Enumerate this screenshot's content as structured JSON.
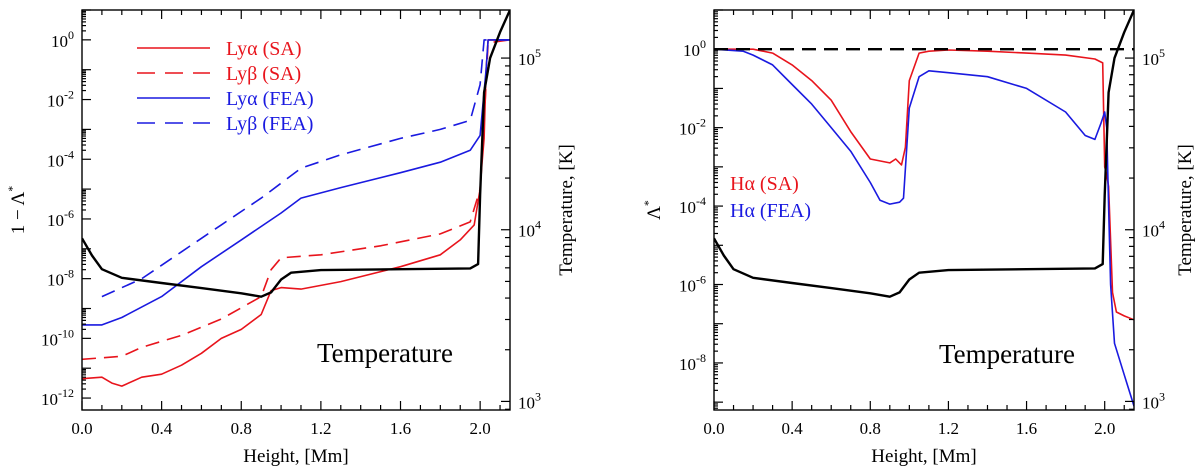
{
  "chart_data": [
    {
      "type": "line",
      "xlabel": "Height, [Mm]",
      "ylabel": "1 − Λ*",
      "ylabel_right": "Temperature, [K]",
      "annotation": "Temperature",
      "xlim": [
        0,
        2.15
      ],
      "ylim_log10": [
        -12.4,
        1
      ],
      "y2lim_log10": [
        2.95,
        5.28
      ],
      "y2_scale": "log",
      "y_scale": "log",
      "xticks": [
        "0.0",
        "0.4",
        "0.8",
        "1.2",
        "1.6",
        "2.0"
      ],
      "xtick_values": [
        0,
        0.4,
        0.8,
        1.2,
        1.6,
        2.0
      ],
      "yticks": [
        {
          "exp": -12,
          "base": "10",
          "power": "-12"
        },
        {
          "exp": -10,
          "base": "10",
          "power": "-10"
        },
        {
          "exp": -8,
          "base": "10",
          "power": "-8"
        },
        {
          "exp": -6,
          "base": "10",
          "power": "-6"
        },
        {
          "exp": -4,
          "base": "10",
          "power": "-4"
        },
        {
          "exp": -2,
          "base": "10",
          "power": "-2"
        },
        {
          "exp": 0,
          "base": "10",
          "power": "0"
        }
      ],
      "y2ticks": [
        {
          "exp": 3,
          "base": "10",
          "power": "3"
        },
        {
          "exp": 4,
          "base": "10",
          "power": "4"
        },
        {
          "exp": 5,
          "base": "10",
          "power": "5"
        }
      ],
      "legend_position": "top-left",
      "legend": [
        {
          "main": "Lyα",
          "tag": " (SA)",
          "color": "#e8141c",
          "dash": "solid"
        },
        {
          "main": "Lyβ",
          "tag": " (SA)",
          "color": "#e8141c",
          "dash": "dashed"
        },
        {
          "main": "Lyα",
          "tag": " (FEA)",
          "color": "#1a1ae0",
          "dash": "solid"
        },
        {
          "main": "Lyβ",
          "tag": " (FEA)",
          "color": "#1a1ae0",
          "dash": "dashed"
        }
      ],
      "series": [
        {
          "name": "Lyα (SA)",
          "color": "#e8141c",
          "dash": "solid",
          "axis": "left",
          "points": [
            [
              0.0,
              -11.35
            ],
            [
              0.1,
              -11.3
            ],
            [
              0.15,
              -11.5
            ],
            [
              0.2,
              -11.6
            ],
            [
              0.3,
              -11.3
            ],
            [
              0.4,
              -11.2
            ],
            [
              0.5,
              -10.9
            ],
            [
              0.6,
              -10.5
            ],
            [
              0.7,
              -10.0
            ],
            [
              0.8,
              -9.7
            ],
            [
              0.9,
              -9.2
            ],
            [
              0.95,
              -8.4
            ],
            [
              1.0,
              -8.3
            ],
            [
              1.1,
              -8.35
            ],
            [
              1.3,
              -8.1
            ],
            [
              1.6,
              -7.6
            ],
            [
              1.8,
              -7.2
            ],
            [
              1.9,
              -6.7
            ],
            [
              1.97,
              -6.2
            ],
            [
              2.0,
              -5.0
            ],
            [
              2.01,
              -4.1
            ],
            [
              2.02,
              -3.3
            ],
            [
              2.03,
              -1.0
            ],
            [
              2.04,
              0.0
            ],
            [
              2.15,
              0.0
            ]
          ]
        },
        {
          "name": "Lyβ (SA)",
          "color": "#e8141c",
          "dash": "dashed",
          "axis": "left",
          "points": [
            [
              0.0,
              -10.7
            ],
            [
              0.2,
              -10.6
            ],
            [
              0.3,
              -10.3
            ],
            [
              0.5,
              -9.9
            ],
            [
              0.7,
              -9.35
            ],
            [
              0.9,
              -8.6
            ],
            [
              0.95,
              -7.7
            ],
            [
              1.0,
              -7.3
            ],
            [
              1.2,
              -7.2
            ],
            [
              1.5,
              -6.9
            ],
            [
              1.8,
              -6.5
            ],
            [
              1.95,
              -6.1
            ],
            [
              2.0,
              -5.0
            ],
            [
              2.02,
              -2.8
            ],
            [
              2.04,
              -0.1
            ],
            [
              2.15,
              0.0
            ]
          ]
        },
        {
          "name": "Lyα (FEA)",
          "color": "#1a1ae0",
          "dash": "solid",
          "axis": "left",
          "points": [
            [
              0.0,
              -9.55
            ],
            [
              0.1,
              -9.55
            ],
            [
              0.2,
              -9.3
            ],
            [
              0.4,
              -8.6
            ],
            [
              0.6,
              -7.6
            ],
            [
              0.8,
              -6.7
            ],
            [
              1.0,
              -5.8
            ],
            [
              1.1,
              -5.3
            ],
            [
              1.3,
              -4.95
            ],
            [
              1.6,
              -4.45
            ],
            [
              1.8,
              -4.1
            ],
            [
              1.95,
              -3.7
            ],
            [
              2.0,
              -3.2
            ],
            [
              2.03,
              -1.0
            ],
            [
              2.04,
              0.0
            ],
            [
              2.15,
              0.0
            ]
          ]
        },
        {
          "name": "Lyβ (FEA)",
          "color": "#1a1ae0",
          "dash": "dashed",
          "axis": "left",
          "points": [
            [
              0.1,
              -8.6
            ],
            [
              0.3,
              -8.0
            ],
            [
              0.5,
              -7.1
            ],
            [
              0.7,
              -6.2
            ],
            [
              0.9,
              -5.3
            ],
            [
              1.1,
              -4.3
            ],
            [
              1.3,
              -3.85
            ],
            [
              1.6,
              -3.3
            ],
            [
              1.8,
              -3.0
            ],
            [
              1.95,
              -2.7
            ],
            [
              2.0,
              -1.5
            ],
            [
              2.02,
              0.0
            ],
            [
              2.15,
              0.0
            ]
          ]
        },
        {
          "name": "Temperature",
          "color": "#000000",
          "dash": "solid",
          "axis": "right",
          "points": [
            [
              0.0,
              3.95
            ],
            [
              0.05,
              3.85
            ],
            [
              0.1,
              3.77
            ],
            [
              0.2,
              3.72
            ],
            [
              0.4,
              3.69
            ],
            [
              0.6,
              3.66
            ],
            [
              0.8,
              3.63
            ],
            [
              0.9,
              3.61
            ],
            [
              0.95,
              3.635
            ],
            [
              1.0,
              3.71
            ],
            [
              1.05,
              3.75
            ],
            [
              1.2,
              3.765
            ],
            [
              1.6,
              3.77
            ],
            [
              1.95,
              3.775
            ],
            [
              1.99,
              3.8
            ],
            [
              2.0,
              4.2
            ],
            [
              2.02,
              4.8
            ],
            [
              2.05,
              5.0
            ],
            [
              2.1,
              5.15
            ],
            [
              2.15,
              5.28
            ]
          ]
        }
      ]
    },
    {
      "type": "line",
      "xlabel": "Height, [Mm]",
      "ylabel": "Λ*",
      "ylabel_right": "Temperature, [K]",
      "annotation": "Temperature",
      "xlim": [
        0,
        2.15
      ],
      "ylim_log10": [
        -9.2,
        1
      ],
      "y2lim_log10": [
        2.95,
        5.28
      ],
      "y2_scale": "log",
      "y_scale": "log",
      "xticks": [
        "0.0",
        "0.4",
        "0.8",
        "1.2",
        "1.6",
        "2.0"
      ],
      "xtick_values": [
        0,
        0.4,
        0.8,
        1.2,
        1.6,
        2.0
      ],
      "yticks": [
        {
          "exp": -8,
          "base": "10",
          "power": "-8"
        },
        {
          "exp": -6,
          "base": "10",
          "power": "-6"
        },
        {
          "exp": -4,
          "base": "10",
          "power": "-4"
        },
        {
          "exp": -2,
          "base": "10",
          "power": "-2"
        },
        {
          "exp": 0,
          "base": "10",
          "power": "0"
        }
      ],
      "y2ticks": [
        {
          "exp": 3,
          "base": "10",
          "power": "3"
        },
        {
          "exp": 4,
          "base": "10",
          "power": "4"
        },
        {
          "exp": 5,
          "base": "10",
          "power": "5"
        }
      ],
      "legend_position": "middle-left",
      "legend": [
        {
          "main": "Hα",
          "tag": " (SA)",
          "color": "#e8141c",
          "dash": "solid"
        },
        {
          "main": "Hα",
          "tag": " (FEA)",
          "color": "#1a1ae0",
          "dash": "solid"
        }
      ],
      "series": [
        {
          "name": "Hα (SA)",
          "color": "#e8141c",
          "dash": "solid",
          "axis": "left",
          "points": [
            [
              0.0,
              0.0
            ],
            [
              0.2,
              0.0
            ],
            [
              0.3,
              -0.1
            ],
            [
              0.4,
              -0.4
            ],
            [
              0.5,
              -0.8
            ],
            [
              0.6,
              -1.3
            ],
            [
              0.7,
              -2.1
            ],
            [
              0.8,
              -2.8
            ],
            [
              0.9,
              -2.9
            ],
            [
              0.93,
              -2.8
            ],
            [
              0.96,
              -2.95
            ],
            [
              0.98,
              -2.5
            ],
            [
              1.0,
              -0.8
            ],
            [
              1.05,
              -0.1
            ],
            [
              1.1,
              -0.05
            ],
            [
              1.2,
              -0.02
            ],
            [
              1.4,
              -0.05
            ],
            [
              1.6,
              -0.1
            ],
            [
              1.8,
              -0.15
            ],
            [
              1.95,
              -0.25
            ],
            [
              1.99,
              -0.35
            ],
            [
              2.0,
              -3.0
            ],
            [
              2.01,
              -3.2
            ],
            [
              2.02,
              -3.5
            ],
            [
              2.04,
              -6.2
            ],
            [
              2.06,
              -6.7
            ],
            [
              2.1,
              -6.8
            ],
            [
              2.15,
              -6.9
            ]
          ]
        },
        {
          "name": "Hα (FEA)",
          "color": "#1a1ae0",
          "dash": "solid",
          "axis": "left",
          "points": [
            [
              0.0,
              0.0
            ],
            [
              0.15,
              -0.05
            ],
            [
              0.2,
              -0.15
            ],
            [
              0.3,
              -0.4
            ],
            [
              0.4,
              -0.9
            ],
            [
              0.5,
              -1.4
            ],
            [
              0.6,
              -2.0
            ],
            [
              0.7,
              -2.6
            ],
            [
              0.8,
              -3.4
            ],
            [
              0.85,
              -3.85
            ],
            [
              0.9,
              -3.95
            ],
            [
              0.95,
              -3.9
            ],
            [
              0.97,
              -3.8
            ],
            [
              1.0,
              -1.5
            ],
            [
              1.05,
              -0.7
            ],
            [
              1.1,
              -0.55
            ],
            [
              1.2,
              -0.6
            ],
            [
              1.4,
              -0.7
            ],
            [
              1.6,
              -1.0
            ],
            [
              1.8,
              -1.6
            ],
            [
              1.9,
              -2.2
            ],
            [
              1.95,
              -2.3
            ],
            [
              1.98,
              -1.9
            ],
            [
              2.0,
              -1.6
            ],
            [
              2.01,
              -2.0
            ],
            [
              2.02,
              -4.0
            ],
            [
              2.03,
              -6.0
            ],
            [
              2.05,
              -7.5
            ],
            [
              2.1,
              -8.3
            ],
            [
              2.15,
              -9.1
            ]
          ]
        },
        {
          "name": "",
          "color": "#000000",
          "dash": "dashed",
          "axis": "left",
          "points": [
            [
              0.0,
              0.0
            ],
            [
              2.15,
              0.0
            ]
          ]
        },
        {
          "name": "Temperature",
          "color": "#000000",
          "dash": "solid",
          "axis": "right",
          "points": [
            [
              0.0,
              3.95
            ],
            [
              0.05,
              3.85
            ],
            [
              0.1,
              3.77
            ],
            [
              0.2,
              3.72
            ],
            [
              0.4,
              3.69
            ],
            [
              0.6,
              3.66
            ],
            [
              0.8,
              3.63
            ],
            [
              0.9,
              3.61
            ],
            [
              0.95,
              3.635
            ],
            [
              1.0,
              3.71
            ],
            [
              1.05,
              3.75
            ],
            [
              1.2,
              3.765
            ],
            [
              1.6,
              3.77
            ],
            [
              1.95,
              3.775
            ],
            [
              1.99,
              3.8
            ],
            [
              2.0,
              4.2
            ],
            [
              2.02,
              4.8
            ],
            [
              2.05,
              5.0
            ],
            [
              2.1,
              5.15
            ],
            [
              2.15,
              5.28
            ]
          ]
        }
      ]
    }
  ]
}
